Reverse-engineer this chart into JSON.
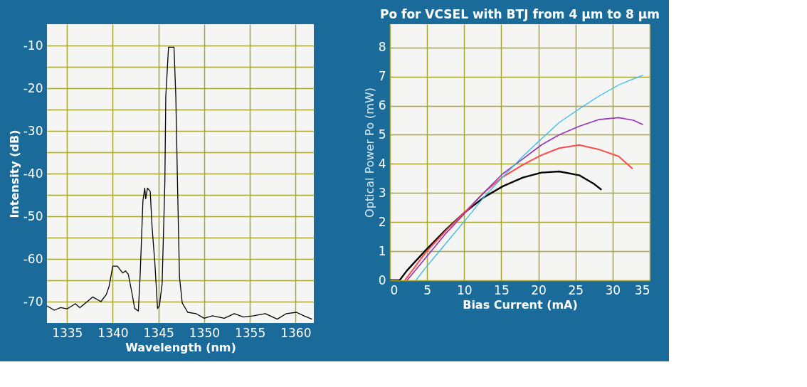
{
  "chart_data": [
    {
      "type": "line",
      "xlabel": "Wavelength (nm)",
      "ylabel": "Intensity (dB)",
      "xlim": [
        1332.8,
        1362
      ],
      "ylim": [
        -75,
        -5
      ],
      "xticks": [
        1335,
        1340,
        1345,
        1350,
        1355,
        1360
      ],
      "yticks": [
        -70,
        {
          "value": -65,
          "label": null
        },
        -60,
        {
          "value": -55,
          "label": null
        },
        -50,
        {
          "value": -45,
          "label": null
        },
        -40,
        {
          "value": -35,
          "label": null
        },
        -30,
        {
          "value": -25,
          "label": null
        },
        -20,
        {
          "value": -15,
          "label": null
        },
        -10
      ],
      "grid": true,
      "series": [
        {
          "color": "#000000",
          "x": [
            1332.8,
            1333.6,
            1334.3,
            1335,
            1335.9,
            1336.4,
            1337.2,
            1337.8,
            1338.7,
            1339.3,
            1339.6,
            1340,
            1340.5,
            1341.1,
            1341.4,
            1341.7,
            1342.1,
            1342.4,
            1342.8,
            1343,
            1343.3,
            1343.5,
            1343.6,
            1343.8,
            1344.1,
            1344.3,
            1344.6,
            1344.9,
            1345.1,
            1345.4,
            1345.7,
            1345.8,
            1346.1,
            1346.7,
            1346.9,
            1347.1,
            1347.3,
            1347.6,
            1348.2,
            1349.1,
            1350,
            1350.9,
            1352.2,
            1353.3,
            1354.3,
            1355.4,
            1356.7,
            1358,
            1359,
            1360.1,
            1360.9,
            1361.8
          ],
          "values": [
            -71,
            -72,
            -71.4,
            -71.7,
            -70.5,
            -71.4,
            -70,
            -68.9,
            -70,
            -68.3,
            -66.4,
            -61.7,
            -61.7,
            -63.3,
            -62.8,
            -63.6,
            -68,
            -71.6,
            -72.2,
            -63.6,
            -46.4,
            -43.4,
            -45.9,
            -43.4,
            -44.2,
            -52.5,
            -60.8,
            -71.6,
            -71,
            -65.8,
            -42,
            -22,
            -10.4,
            -10.4,
            -22,
            -44.2,
            -64.2,
            -70.3,
            -72.5,
            -72.8,
            -73.9,
            -73.3,
            -73.9,
            -72.8,
            -73.6,
            -73.3,
            -72.8,
            -74.1,
            -72.8,
            -72.5,
            -73.3,
            -74.1
          ]
        }
      ]
    },
    {
      "type": "line",
      "title": "Po for VCSEL with BTJ from 4 µm to 8 µm",
      "xlabel": "Bias Current (mA)",
      "ylabel": "Optical Power Po (mW)",
      "xlim": [
        0,
        35
      ],
      "ylim": [
        0,
        8.8
      ],
      "xticks": [
        0,
        5,
        10,
        15,
        20,
        25,
        30,
        35
      ],
      "yticks": [
        0,
        1,
        2,
        3,
        4,
        5,
        6,
        7,
        8
      ],
      "grid": true,
      "series": [
        {
          "color": "#000000",
          "x": [
            0,
            1.3,
            2.3,
            4.8,
            7.6,
            10,
            12.6,
            15.2,
            17.9,
            20.4,
            22.8,
            25.5,
            27.5,
            28.5
          ],
          "values": [
            0,
            0,
            0.34,
            1.03,
            1.76,
            2.32,
            2.84,
            3.23,
            3.53,
            3.7,
            3.74,
            3.61,
            3.31,
            3.11
          ]
        },
        {
          "color": "#ff4a4a",
          "x": [
            2,
            4.8,
            7.6,
            10,
            12.6,
            15.2,
            17.9,
            20.4,
            22.8,
            25.5,
            28.1,
            30.8,
            32.7
          ],
          "values": [
            0,
            0.95,
            1.72,
            2.32,
            3.0,
            3.55,
            3.97,
            4.3,
            4.54,
            4.65,
            4.5,
            4.26,
            3.83
          ]
        },
        {
          "color": "#9933bb",
          "x": [
            2.3,
            4.8,
            7.6,
            10,
            12.6,
            15.2,
            17.9,
            20.4,
            22.8,
            25.5,
            28.1,
            30.8,
            32.8,
            34.1
          ],
          "values": [
            0,
            0.77,
            1.63,
            2.28,
            3.0,
            3.66,
            4.17,
            4.65,
            5.0,
            5.29,
            5.52,
            5.59,
            5.5,
            5.35
          ]
        },
        {
          "color": "#33bbee",
          "x": [
            3.5,
            4.8,
            7.6,
            10,
            12.6,
            15.2,
            17.9,
            20.4,
            22.8,
            25.5,
            28.1,
            30.8,
            32.8,
            34.1
          ],
          "values": [
            0,
            0.43,
            1.29,
            2.02,
            2.84,
            3.55,
            4.26,
            4.86,
            5.42,
            5.89,
            6.32,
            6.71,
            6.92,
            7.05
          ]
        }
      ]
    }
  ]
}
